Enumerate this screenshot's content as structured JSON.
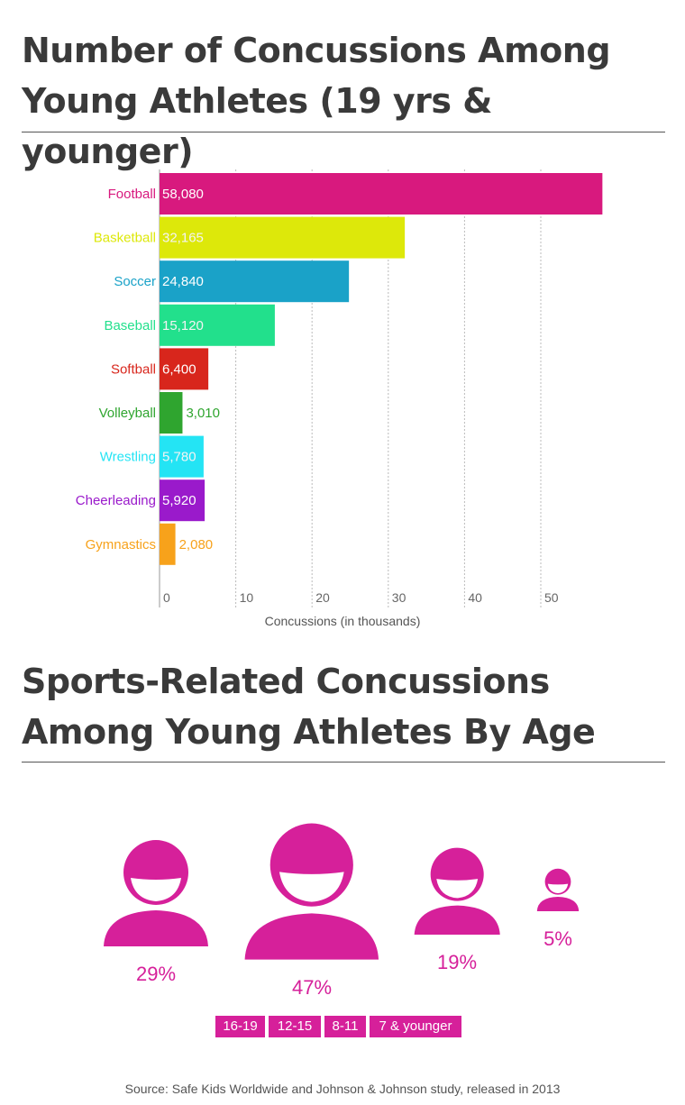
{
  "title1": "Number of Concussions Among Young Athletes (19 yrs & younger)",
  "title2": "Sports-Related Concussions Among Young Athletes By Age",
  "source": "Source: Safe Kids Worldwide and Johnson & Johnson study, released in 2013",
  "chart_data": [
    {
      "type": "bar",
      "orientation": "horizontal",
      "xlabel": "Concussions (in thousands)",
      "xlim": [
        0,
        58
      ],
      "xticks": [
        0,
        10,
        20,
        30,
        40,
        50
      ],
      "grid": true,
      "categories": [
        "Football",
        "Basketball",
        "Soccer",
        "Baseball",
        "Softball",
        "Volleyball",
        "Wrestling",
        "Cheerleading",
        "Gymnastics"
      ],
      "values": [
        58080,
        32165,
        24840,
        15120,
        6400,
        3010,
        5780,
        5920,
        2080
      ],
      "labels": [
        "58,080",
        "32,165",
        "24,840",
        "15,120",
        "6,400",
        "3,010",
        "5,780",
        "5,920",
        "2,080"
      ],
      "colors": [
        "#d8197e",
        "#dde80a",
        "#1aa2c8",
        "#22e08c",
        "#d8261c",
        "#2fa52f",
        "#24e4f4",
        "#9a1acb",
        "#f7a21b"
      ]
    },
    {
      "type": "pictogram",
      "categories": [
        "16-19",
        "12-15",
        "8-11",
        "7 & younger"
      ],
      "values": [
        29,
        47,
        19,
        5
      ],
      "labels": [
        "29%",
        "47%",
        "19%",
        "5%"
      ],
      "color": "#d6209a"
    }
  ]
}
